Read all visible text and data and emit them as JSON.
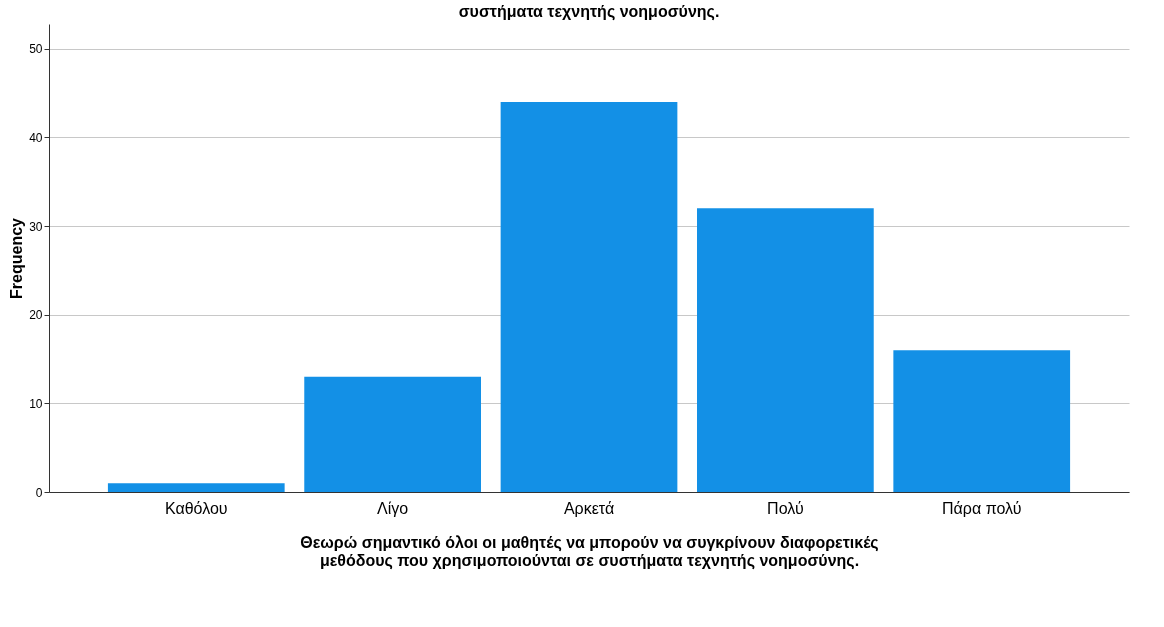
{
  "chart_data": {
    "type": "bar",
    "title": "συστήματα τεχνητής νοημοσύνης.",
    "xlabel": "Θεωρώ σημαντικό όλοι οι μαθητές να μπορούν να συγκρίνουν διαφορετικές μεθόδους που χρησιμοποιούνται σε συστήματα τεχνητής νοημοσύνης.",
    "ylabel": "Frequency",
    "categories": [
      "Καθόλου",
      "Λίγο",
      "Αρκετά",
      "Πολύ",
      "Πάρα πολύ"
    ],
    "values": [
      1,
      13,
      44,
      32,
      16
    ],
    "color": "#1390e6",
    "ylim": [
      0,
      52.8
    ],
    "yticks": [
      0,
      10,
      20,
      30,
      40,
      50
    ],
    "grid": "y"
  }
}
